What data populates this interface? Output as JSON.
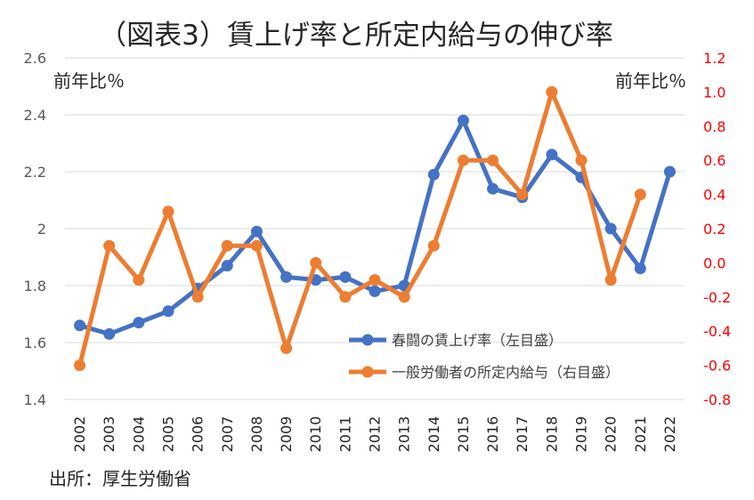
{
  "chart_data": {
    "type": "line",
    "title": "（図表3）賃上げ率と所定内給与の伸び率",
    "left_axis_label": "前年比％",
    "right_axis_label": "前年比％",
    "source": "出所：厚生労働省",
    "categories": [
      "2002",
      "2003",
      "2004",
      "2005",
      "2006",
      "2007",
      "2008",
      "2009",
      "2010",
      "2011",
      "2012",
      "2013",
      "2014",
      "2015",
      "2016",
      "2017",
      "2018",
      "2019",
      "2020",
      "2021",
      "2022"
    ],
    "y_left": {
      "min": 1.4,
      "max": 2.6,
      "ticks": [
        "1.4",
        "1.6",
        "1.8",
        "2",
        "2.2",
        "2.4",
        "2.6"
      ],
      "tick_values": [
        1.4,
        1.6,
        1.8,
        2.0,
        2.2,
        2.4,
        2.6
      ]
    },
    "y_right": {
      "min": -0.8,
      "max": 1.2,
      "ticks": [
        "-0.8",
        "-0.6",
        "-0.4",
        "-0.2",
        "0.0",
        "0.2",
        "0.4",
        "0.6",
        "0.8",
        "1.0",
        "1.2"
      ],
      "tick_values": [
        -0.8,
        -0.6,
        -0.4,
        -0.2,
        0.0,
        0.2,
        0.4,
        0.6,
        0.8,
        1.0,
        1.2
      ]
    },
    "series": [
      {
        "name": "春闘の賃上げ率（左目盛）",
        "axis": "left",
        "color": "#4472C4",
        "values": [
          1.66,
          1.63,
          1.67,
          1.71,
          1.79,
          1.87,
          1.99,
          1.83,
          1.82,
          1.83,
          1.78,
          1.8,
          2.19,
          2.38,
          2.14,
          2.11,
          2.26,
          2.18,
          2.0,
          1.86,
          2.2
        ]
      },
      {
        "name": "一般労働者の所定内給与（右目盛）",
        "axis": "right",
        "color": "#ED7D31",
        "values": [
          -0.6,
          0.1,
          -0.1,
          0.3,
          -0.2,
          0.1,
          0.1,
          -0.5,
          0.0,
          -0.2,
          -0.1,
          -0.2,
          0.1,
          0.6,
          0.6,
          0.4,
          1.0,
          0.6,
          -0.1,
          0.4,
          null
        ]
      }
    ],
    "colors": {
      "left_tick_text": "#595959",
      "right_tick_text": "#FF0000",
      "grid": "#D9D9D9"
    }
  }
}
